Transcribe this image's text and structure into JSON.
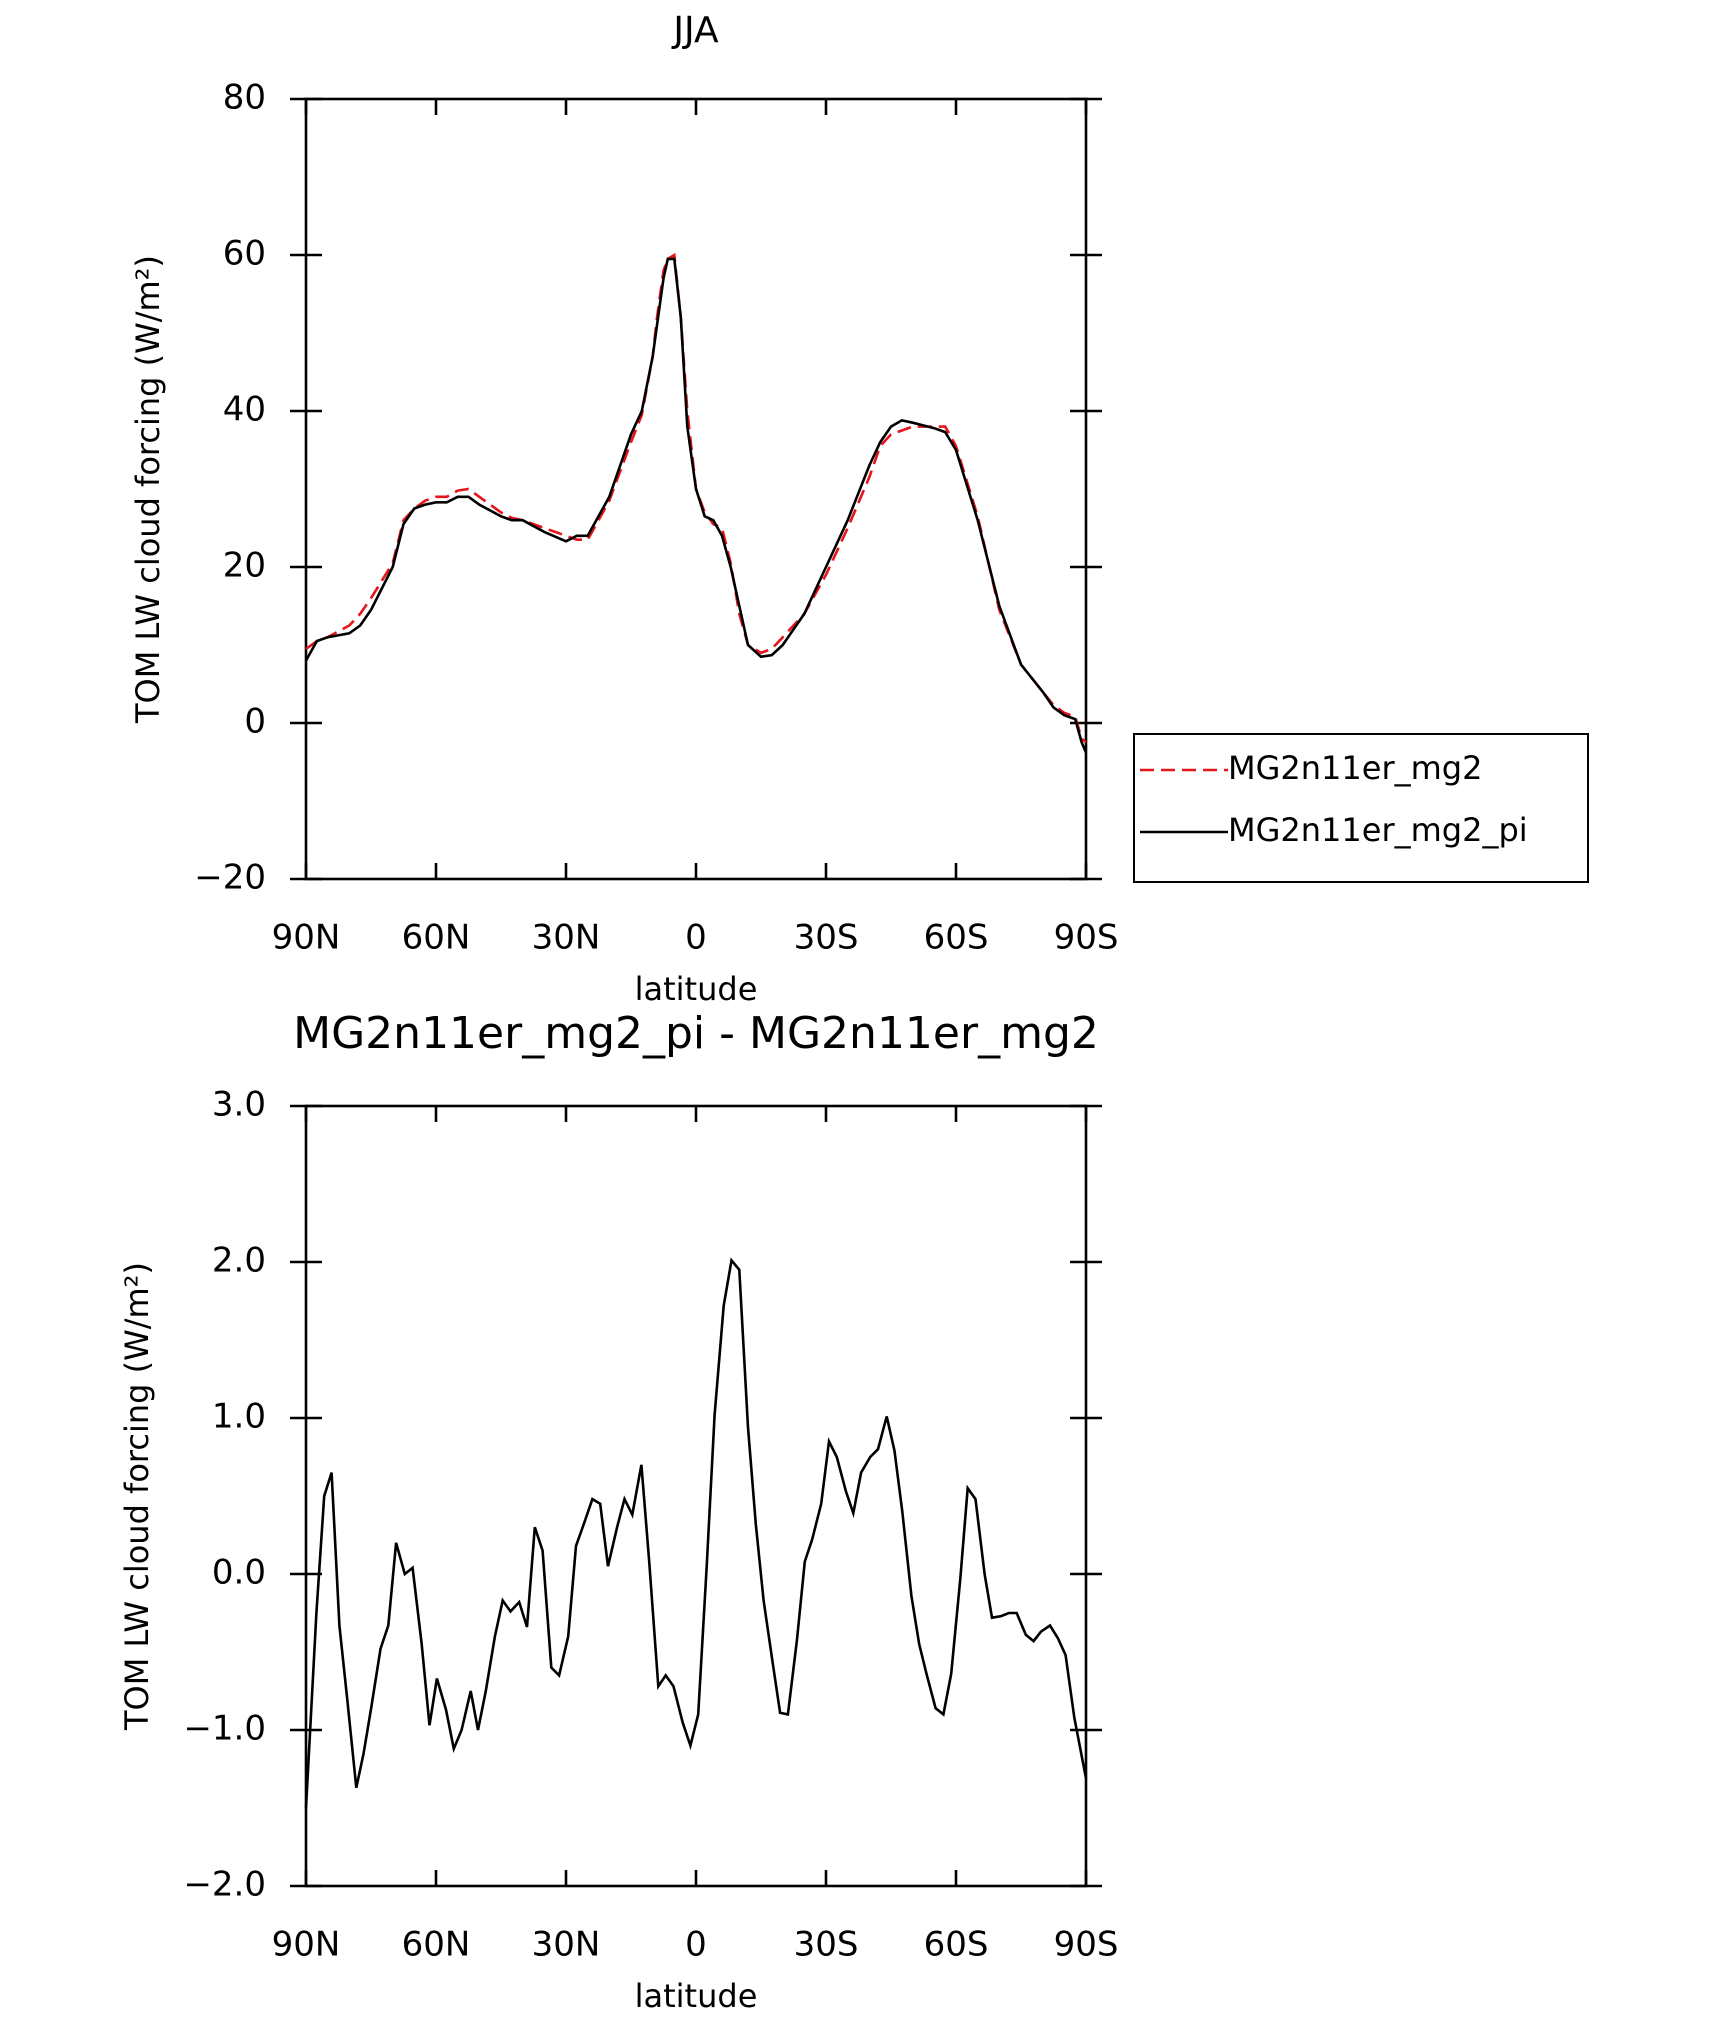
{
  "chart_data": [
    {
      "type": "line",
      "title": "JJA",
      "x_label": "latitude",
      "y_label": "TOM LW cloud forcing (W/m²)",
      "xlim": [
        90,
        -90
      ],
      "ylim": [
        -20,
        80
      ],
      "xticks": [
        {
          "value": 90,
          "label": "90N"
        },
        {
          "value": 60,
          "label": "60N"
        },
        {
          "value": 30,
          "label": "30N"
        },
        0,
        {
          "value": -30,
          "label": "30S"
        },
        {
          "value": -60,
          "label": "60S"
        },
        {
          "value": -90,
          "label": "90S"
        }
      ],
      "yticks": [
        {
          "value": -20,
          "label": "−20"
        },
        0,
        20,
        40,
        60,
        80
      ],
      "legend": "outside right",
      "x": [
        90,
        87.5,
        85,
        80,
        77.5,
        75,
        70,
        67.5,
        65,
        62.5,
        60,
        57.5,
        55,
        52.5,
        50,
        45,
        42.5,
        40,
        35,
        30,
        27.5,
        25,
        20,
        15,
        12.5,
        10,
        9,
        7.5,
        6.5,
        5,
        3.5,
        2,
        0,
        -2,
        -4,
        -6,
        -8,
        -10,
        -12,
        -15,
        -17.5,
        -20,
        -25,
        -30,
        -35,
        -40,
        -42.5,
        -45,
        -47.5,
        -50,
        -55,
        -57.5,
        -60,
        -65,
        -70,
        -75,
        -80,
        -82.5,
        -85,
        -87.5,
        -89,
        -90
      ],
      "series": [
        {
          "name": "MG2n11er_mg2",
          "color": "#e8141c",
          "line_style": "dashed",
          "values": [
            9.5,
            10.5,
            11,
            12.5,
            14,
            16,
            20.5,
            26,
            27.5,
            28.5,
            29,
            29,
            29.8,
            30,
            29,
            27,
            26.3,
            26,
            25,
            24,
            23.5,
            23.5,
            28.5,
            36,
            39.5,
            47,
            52,
            58,
            59.5,
            60,
            52,
            40,
            30,
            27,
            25.5,
            25,
            20.5,
            14,
            10,
            9,
            9.5,
            11,
            14,
            19,
            25,
            31.5,
            35.5,
            37,
            37.5,
            38,
            38,
            38,
            35.5,
            26.5,
            14.5,
            7.5,
            4,
            2.3,
            1.3,
            0.8,
            -2,
            -2.5
          ]
        },
        {
          "name": "MG2n11er_mg2_pi",
          "color": "#000000",
          "line_style": "solid",
          "values": [
            8,
            10.5,
            11,
            11.5,
            12.5,
            14.5,
            20,
            25.5,
            27.5,
            28,
            28.3,
            28.3,
            29,
            29,
            28,
            26.5,
            26,
            26,
            24.5,
            23.3,
            24,
            24,
            29,
            37,
            40,
            47,
            51,
            57,
            59.5,
            59.5,
            52,
            38,
            30,
            26.5,
            26,
            24,
            20,
            15,
            10,
            8.5,
            8.7,
            10,
            14,
            20,
            26,
            33,
            36,
            38,
            38.8,
            38.5,
            37.8,
            37.3,
            35,
            26,
            15,
            7.5,
            4,
            2,
            1,
            0.5,
            -2.5,
            -3.8
          ]
        }
      ]
    },
    {
      "type": "line",
      "title": "MG2n11er_mg2_pi - MG2n11er_mg2",
      "x_label": "latitude",
      "y_label": "TOM LW cloud forcing (W/m²)",
      "xlim": [
        90,
        -90
      ],
      "ylim": [
        -2,
        3
      ],
      "xticks": [
        {
          "value": 90,
          "label": "90N"
        },
        {
          "value": 60,
          "label": "60N"
        },
        {
          "value": 30,
          "label": "30N"
        },
        0,
        {
          "value": -30,
          "label": "30S"
        },
        {
          "value": -60,
          "label": "60S"
        },
        {
          "value": -90,
          "label": "90S"
        }
      ],
      "yticks": [
        {
          "value": -2,
          "label": "−2.0"
        },
        {
          "value": -1,
          "label": "−1.0"
        },
        {
          "value": 0,
          "label": "0.0"
        },
        {
          "value": 1,
          "label": "1.0"
        },
        {
          "value": 2,
          "label": "2.0"
        },
        {
          "value": 3,
          "label": "3.0"
        }
      ],
      "x": [
        90,
        87.6,
        85.8,
        84.1,
        82.3,
        80.5,
        78.4,
        76.7,
        74.9,
        72.8,
        71.0,
        69.2,
        67.2,
        65.4,
        63.3,
        61.5,
        59.8,
        57.7,
        55.9,
        54.1,
        52.0,
        50.3,
        48.5,
        46.4,
        44.6,
        42.8,
        40.8,
        39.0,
        37.2,
        35.4,
        33.4,
        31.6,
        29.5,
        27.7,
        25.9,
        23.9,
        22.1,
        20.3,
        18.2,
        16.5,
        14.7,
        12.6,
        10.8,
        8.7,
        7.0,
        5.2,
        3.1,
        1.3,
        -0.5,
        -2.5,
        -4.3,
        -6.4,
        -8.2,
        -10.0,
        -12.0,
        -13.8,
        -15.6,
        -17.7,
        -19.4,
        -21.2,
        -23.3,
        -25.1,
        -26.8,
        -28.9,
        -30.7,
        -32.5,
        -34.6,
        -36.3,
        -38.1,
        -40.2,
        -42.0,
        -44.0,
        -45.8,
        -47.6,
        -49.7,
        -51.5,
        -53.2,
        -55.3,
        -57.1,
        -58.9,
        -61.0,
        -62.7,
        -64.5,
        -66.6,
        -68.3,
        -70.4,
        -72.2,
        -74.0,
        -76.1,
        -77.9,
        -79.6,
        -81.7,
        -83.5,
        -85.3,
        -87.3,
        -90
      ],
      "series": [
        {
          "color": "#000000",
          "line_style": "solid",
          "values": [
            -1.5,
            -0.25,
            0.5,
            0.65,
            -0.33,
            -0.8,
            -1.37,
            -1.15,
            -0.85,
            -0.48,
            -0.33,
            0.2,
            0.0,
            0.04,
            -0.45,
            -0.97,
            -0.67,
            -0.87,
            -1.12,
            -1.0,
            -0.75,
            -1.0,
            -0.75,
            -0.4,
            -0.17,
            -0.24,
            -0.18,
            -0.34,
            0.3,
            0.15,
            -0.6,
            -0.65,
            -0.4,
            0.18,
            0.32,
            0.48,
            0.45,
            0.05,
            0.3,
            0.48,
            0.38,
            0.7,
            0.08,
            -0.72,
            -0.65,
            -0.72,
            -0.95,
            -1.1,
            -0.9,
            0.06,
            1.02,
            1.72,
            2.01,
            1.95,
            0.94,
            0.32,
            -0.17,
            -0.57,
            -0.89,
            -0.9,
            -0.42,
            0.08,
            0.22,
            0.45,
            0.85,
            0.75,
            0.53,
            0.39,
            0.65,
            0.75,
            0.8,
            1.01,
            0.79,
            0.4,
            -0.14,
            -0.45,
            -0.64,
            -0.86,
            -0.9,
            -0.64,
            -0.03,
            0.55,
            0.48,
            0.0,
            -0.28,
            -0.27,
            -0.25,
            -0.25,
            -0.39,
            -0.43,
            -0.37,
            -0.33,
            -0.41,
            -0.52,
            -0.92,
            -1.31
          ]
        }
      ]
    }
  ]
}
